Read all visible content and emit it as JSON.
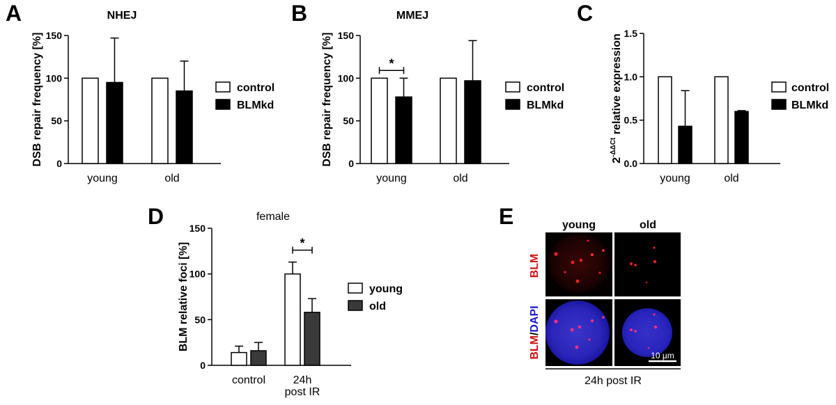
{
  "panels": {
    "A": "A",
    "B": "B",
    "C": "C",
    "D": "D",
    "E": "E"
  },
  "legend_ab": {
    "control": "control",
    "blmkd": "BLMkd"
  },
  "legend_d": {
    "young": "young",
    "old": "old"
  },
  "colors": {
    "control_fill": "#ffffff",
    "blmkd_fill": "#000000",
    "old_fill": "#3a3a3a",
    "blm_red": "#d01010",
    "dapi_blue": "#1a1ad0"
  },
  "chart_data": [
    {
      "id": "A",
      "type": "bar",
      "title": "NHEJ",
      "ylabel": "DSB repair frequency [%]",
      "xlabel": "",
      "categories": [
        "young",
        "old"
      ],
      "ylim": [
        0,
        150
      ],
      "yticks": [
        0,
        50,
        100,
        150
      ],
      "series": [
        {
          "name": "control",
          "values": [
            100,
            100
          ],
          "errors": [
            0,
            0
          ]
        },
        {
          "name": "BLMkd",
          "values": [
            95,
            85
          ],
          "errors": [
            52,
            35
          ]
        }
      ],
      "significance": []
    },
    {
      "id": "B",
      "type": "bar",
      "title": "MMEJ",
      "ylabel": "DSB repair frequency [%]",
      "xlabel": "",
      "categories": [
        "young",
        "old"
      ],
      "ylim": [
        0,
        150
      ],
      "yticks": [
        0,
        50,
        100,
        150
      ],
      "series": [
        {
          "name": "control",
          "values": [
            100,
            100
          ],
          "errors": [
            0,
            0
          ]
        },
        {
          "name": "BLMkd",
          "values": [
            78,
            97
          ],
          "errors": [
            22,
            47
          ]
        }
      ],
      "significance": [
        {
          "category": "young",
          "label": "*"
        }
      ]
    },
    {
      "id": "C",
      "type": "bar",
      "title": "",
      "ylabel_prefix": "2",
      "ylabel_sup": "-ΔΔCt",
      "ylabel_suffix": " relative expression",
      "xlabel": "",
      "categories": [
        "young",
        "old"
      ],
      "ylim": [
        0,
        1.5
      ],
      "yticks": [
        0.0,
        0.5,
        1.0,
        1.5
      ],
      "tick_labels": [
        "0.0",
        "0.5",
        "1.0",
        "1.5"
      ],
      "series": [
        {
          "name": "control",
          "values": [
            1.0,
            1.0
          ],
          "errors": [
            0,
            0
          ]
        },
        {
          "name": "BLMkd",
          "values": [
            0.43,
            0.6
          ],
          "errors": [
            0.41,
            0.01
          ]
        }
      ],
      "significance": []
    },
    {
      "id": "D",
      "type": "bar",
      "title": "female",
      "ylabel": "BLM relative foci [%]",
      "xlabel": "",
      "categories": [
        "control",
        "24h\npost IR"
      ],
      "category_lines": [
        [
          "control"
        ],
        [
          "24h",
          "post IR"
        ]
      ],
      "ylim": [
        0,
        150
      ],
      "yticks": [
        0,
        50,
        100,
        150
      ],
      "series": [
        {
          "name": "young",
          "values": [
            14,
            100
          ],
          "errors": [
            7,
            13
          ]
        },
        {
          "name": "old",
          "values": [
            16,
            58
          ],
          "errors": [
            9,
            15
          ]
        }
      ],
      "significance": [
        {
          "category": "24h\npost IR",
          "label": "*"
        }
      ]
    }
  ],
  "panel_e": {
    "col_young": "young",
    "col_old": "old",
    "row_blm": "BLM",
    "row_merge_blm": "BLM",
    "row_merge_slash": "/",
    "row_merge_dapi": "DAPI",
    "scale_bar": "10 µm",
    "caption": "24h post IR"
  }
}
